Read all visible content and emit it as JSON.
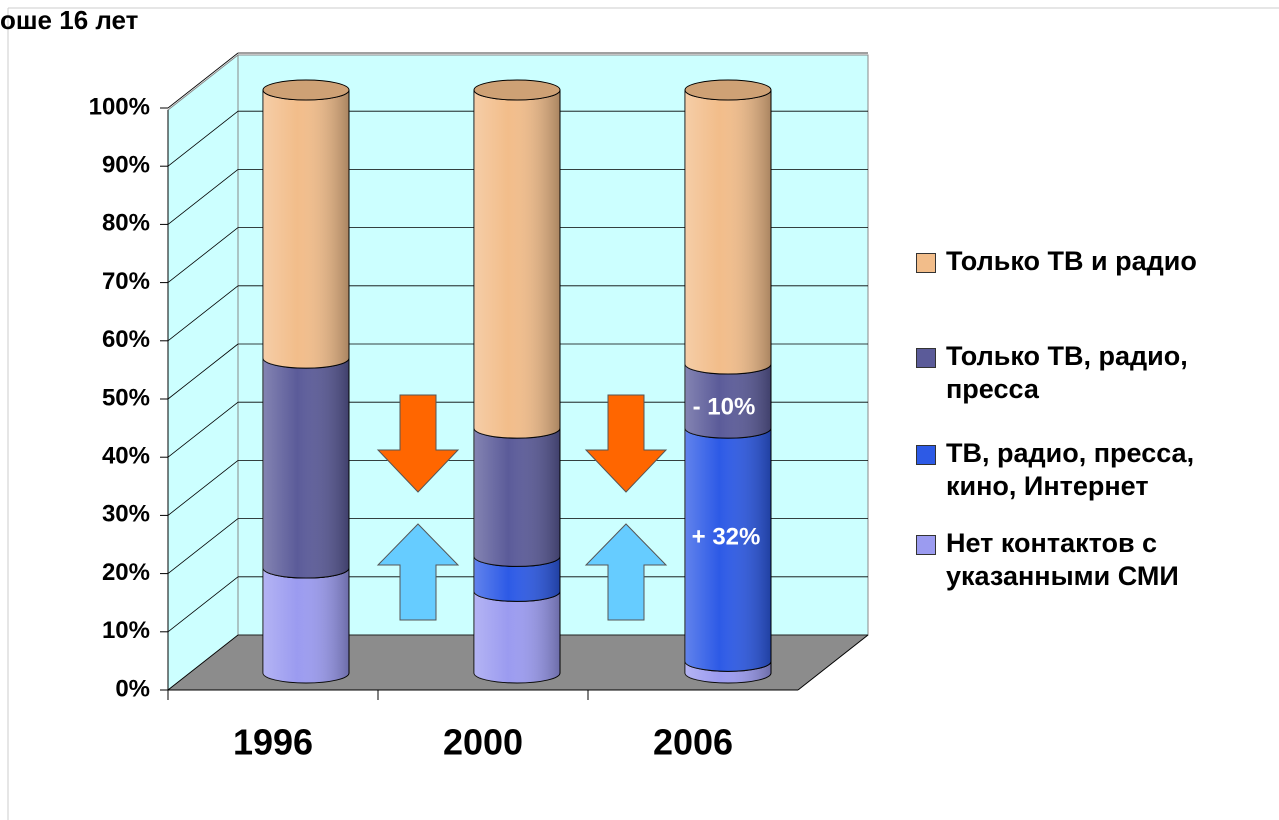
{
  "chart_data": {
    "type": "bar3d-stacked",
    "title": "оше 16 лет",
    "categories": [
      "1996",
      "2000",
      "2006"
    ],
    "series": [
      {
        "name": "Только ТВ и радио",
        "color": "#f2bd8a",
        "values": [
          46,
          58,
          47
        ]
      },
      {
        "name": "Только ТВ, радио, пресса",
        "color": "#5b5b99",
        "values": [
          36,
          22,
          11
        ]
      },
      {
        "name": "ТВ, радио, пресса, кино, Интернет",
        "color": "#2d5ae6",
        "values": [
          0,
          6,
          40
        ]
      },
      {
        "name": "Нет контактов с указанными СМИ",
        "color": "#9b9bf0",
        "values": [
          18,
          14,
          2
        ]
      }
    ],
    "ylim": [
      0,
      100
    ],
    "yticks": [
      {
        "value": 0,
        "label": "0%"
      },
      {
        "value": 10,
        "label": "10%"
      },
      {
        "value": 20,
        "label": "20%"
      },
      {
        "value": 30,
        "label": "30%"
      },
      {
        "value": 40,
        "label": "40%"
      },
      {
        "value": 50,
        "label": "50%"
      },
      {
        "value": 60,
        "label": "60%"
      },
      {
        "value": 70,
        "label": "70%"
      },
      {
        "value": 80,
        "label": "80%"
      },
      {
        "value": 90,
        "label": "90%"
      },
      {
        "value": 100,
        "label": "100%"
      }
    ],
    "annotations": [
      "- 10%",
      "+ 32%"
    ],
    "grid": true,
    "legend": "right"
  }
}
